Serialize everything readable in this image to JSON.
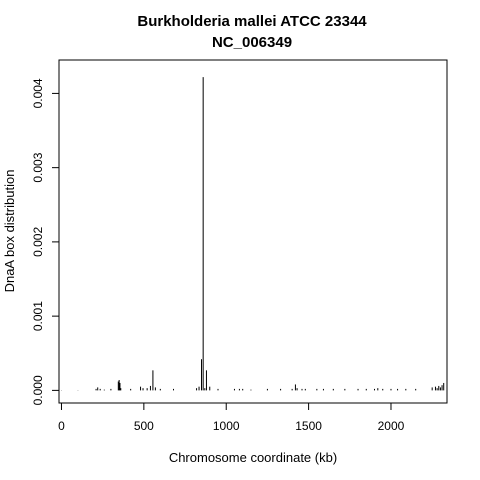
{
  "chart_data": {
    "type": "bar",
    "title": "Burkholderia mallei ATCC 23344",
    "subtitle": "NC_006349",
    "xlabel": "Chromosome coordinate (kb)",
    "ylabel": "DnaA box distribution",
    "xlim": [
      -15,
      2340
    ],
    "ylim": [
      -0.00017,
      0.00445
    ],
    "xticks": [
      0,
      500,
      1000,
      1500,
      2000
    ],
    "xtick_labels": [
      "0",
      "500",
      "1000",
      "1500",
      "2000"
    ],
    "yticks": [
      0.0,
      0.001,
      0.002,
      0.003,
      0.004
    ],
    "ytick_labels": [
      "0.000",
      "0.001",
      "0.002",
      "0.003",
      "0.004"
    ],
    "grid": false,
    "bar_color": "#000000",
    "x": [
      0,
      100,
      210,
      220,
      235,
      260,
      300,
      345,
      350,
      355,
      360,
      420,
      480,
      495,
      520,
      540,
      555,
      570,
      600,
      680,
      820,
      835,
      850,
      860,
      870,
      880,
      900,
      950,
      1050,
      1080,
      1100,
      1150,
      1250,
      1330,
      1400,
      1420,
      1430,
      1460,
      1480,
      1550,
      1590,
      1650,
      1720,
      1800,
      1850,
      1900,
      1920,
      1950,
      2000,
      2040,
      2090,
      2150,
      2250,
      2270,
      2280,
      2290,
      2300,
      2310,
      2320
    ],
    "values": [
      3e-06,
      3e-06,
      2e-05,
      4e-05,
      2e-05,
      1e-05,
      2e-05,
      0.00012,
      0.00014,
      0.0001,
      3e-05,
      2e-05,
      5e-05,
      3e-05,
      3e-05,
      6e-05,
      0.00027,
      4e-05,
      2e-05,
      2e-05,
      3e-05,
      5e-05,
      0.00042,
      0.00422,
      3e-05,
      0.00027,
      5e-05,
      2e-05,
      2e-05,
      2e-05,
      2e-05,
      1e-05,
      2e-05,
      2e-05,
      2e-05,
      8e-05,
      3e-05,
      2e-05,
      2e-05,
      2e-05,
      2e-05,
      2e-05,
      2e-05,
      2e-05,
      2e-05,
      2e-05,
      3e-05,
      2e-05,
      2e-05,
      2e-05,
      2e-05,
      2e-05,
      4e-05,
      5e-05,
      3e-05,
      6e-05,
      4e-05,
      7e-05,
      0.0001
    ]
  }
}
